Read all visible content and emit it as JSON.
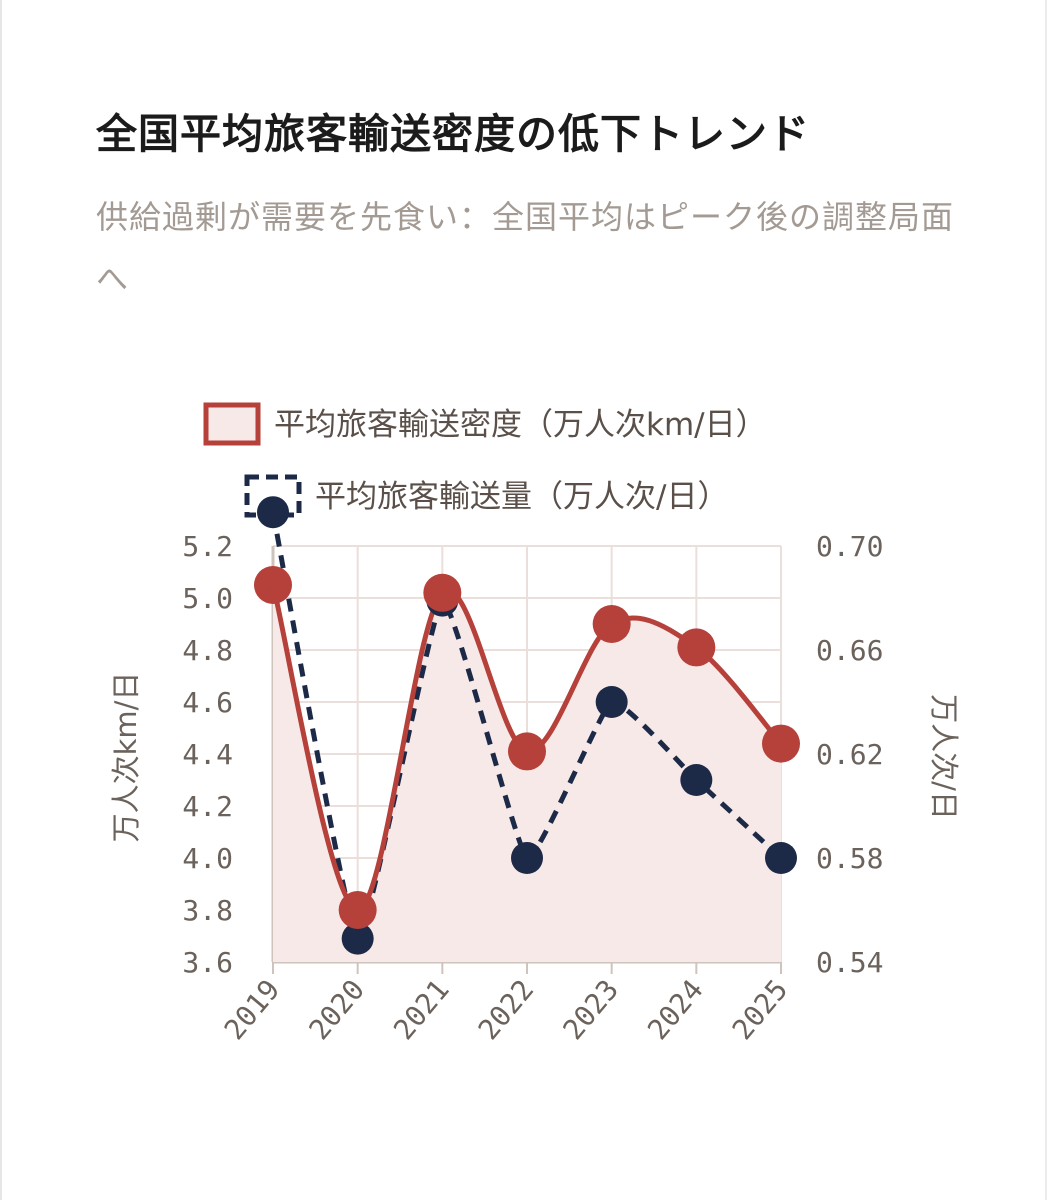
{
  "title": "全国平均旅客輸送密度の低下トレンド",
  "subtitle": "供給過剰が需要を先食い：全国平均はピーク後の調整局面へ",
  "colors": {
    "density": "#b5413a",
    "density_fill": "#f7e9e8",
    "volume": "#1c2a48",
    "grid": "#eadfdb",
    "axis": "#cfc3be"
  },
  "chart_data": {
    "type": "line",
    "categories": [
      "2019",
      "2020",
      "2021",
      "2022",
      "2023",
      "2024",
      "2025"
    ],
    "series": [
      {
        "name": "平均旅客輸送密度（万人次km/日）",
        "axis": "left",
        "style": "solid-area",
        "values": [
          5.05,
          3.8,
          5.02,
          4.41,
          4.9,
          4.81,
          4.44
        ]
      },
      {
        "name": "平均旅客輸送量（万人次/日）",
        "axis": "right",
        "style": "dashed",
        "values": [
          0.713,
          0.549,
          0.679,
          0.58,
          0.64,
          0.61,
          0.58
        ]
      }
    ],
    "y_left": {
      "label": "万人次km/日",
      "min": 3.6,
      "max": 5.2,
      "ticks": [
        "5.2",
        "5.0",
        "4.8",
        "4.6",
        "4.4",
        "4.2",
        "4.0",
        "3.8",
        "3.6"
      ]
    },
    "y_right": {
      "label": "万人次/日",
      "min": 0.54,
      "max": 0.7,
      "ticks": [
        "0.70",
        "0.66",
        "0.62",
        "0.58",
        "0.54"
      ]
    },
    "grid": true,
    "legend_placement": "top"
  }
}
